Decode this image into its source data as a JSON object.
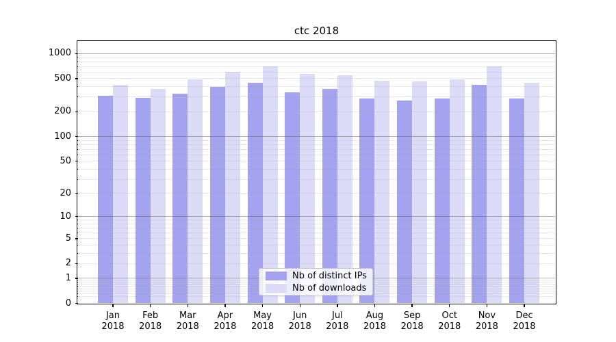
{
  "chart_data": {
    "type": "bar",
    "title": "ctc 2018",
    "categories": [
      "Jan",
      "Feb",
      "Mar",
      "Apr",
      "May",
      "Jun",
      "Jul",
      "Aug",
      "Sep",
      "Oct",
      "Nov",
      "Dec"
    ],
    "x_year": "2018",
    "series": [
      {
        "name": "Nb of distinct IPs",
        "color": "#a3a3ef",
        "values": [
          310,
          292,
          327,
          398,
          446,
          342,
          370,
          286,
          269,
          288,
          414,
          283
        ]
      },
      {
        "name": "Nb of downloads",
        "color": "#dcdcf8",
        "values": [
          420,
          375,
          490,
          600,
          690,
          565,
          540,
          468,
          460,
          489,
          690,
          444
        ]
      }
    ],
    "yscale": "symlog (log10(1+v))",
    "ylim": [
      0,
      1390
    ],
    "yticks": [
      0,
      1,
      2,
      5,
      10,
      20,
      50,
      100,
      200,
      500,
      1000
    ],
    "grid": {
      "major_at": [
        1,
        10,
        100,
        1000
      ],
      "minor_on": true
    },
    "legend_position": "lower center",
    "background": "#ffffff",
    "frame_color": "#000000"
  }
}
